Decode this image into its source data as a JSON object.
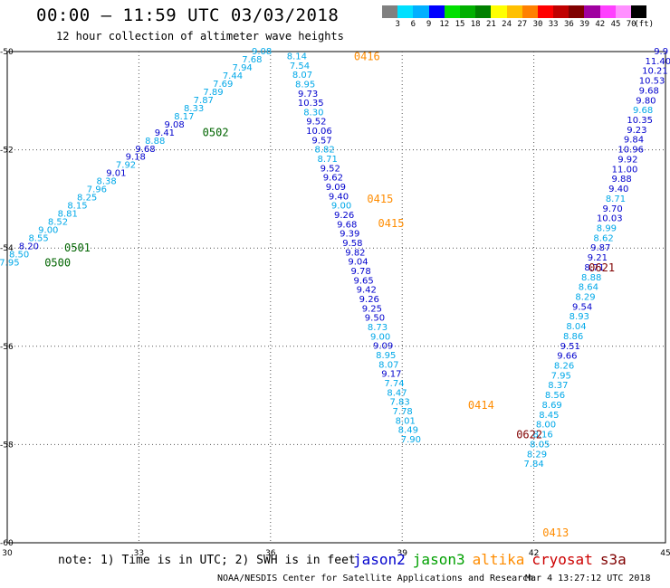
{
  "header": {
    "title": "00:00 — 11:59 UTC 03/03/2018",
    "subtitle": "12 hour collection of altimeter wave heights"
  },
  "color_scale": {
    "unit_label": "(ft)",
    "levels": [
      "3",
      "6",
      "9",
      "12",
      "15",
      "18",
      "21",
      "24",
      "27",
      "30",
      "33",
      "36",
      "39",
      "42",
      "45",
      "70"
    ],
    "colors": [
      "#808080",
      "#00e0ff",
      "#00b0ff",
      "#0000ff",
      "#00e000",
      "#00b000",
      "#008000",
      "#ffff00",
      "#ffc000",
      "#ff8000",
      "#ff0000",
      "#c00000",
      "#800000",
      "#a000a0",
      "#ff40ff",
      "#ff90ff",
      "#000000"
    ]
  },
  "map": {
    "lon_ticks": [
      "30",
      "33",
      "36",
      "39",
      "42",
      "45"
    ],
    "lat_ticks": [
      "-50",
      "-52",
      "-54",
      "-56",
      "-58",
      "-60"
    ],
    "pass_labels": [
      {
        "text": "0416",
        "lon": 37.9,
        "lat": -50.1,
        "color": "#ff8c00"
      },
      {
        "text": "0502",
        "lon": 34.45,
        "lat": -51.65,
        "color": "#006400"
      },
      {
        "text": "0501",
        "lon": 31.3,
        "lat": -54.0,
        "color": "#006400"
      },
      {
        "text": "0500",
        "lon": 30.85,
        "lat": -54.3,
        "color": "#006400"
      },
      {
        "text": "0415",
        "lon": 38.2,
        "lat": -53.0,
        "color": "#ff8c00"
      },
      {
        "text": "0415",
        "lon": 38.45,
        "lat": -53.5,
        "color": "#ff8c00"
      },
      {
        "text": "0414",
        "lon": 40.5,
        "lat": -57.2,
        "color": "#ff8c00"
      },
      {
        "text": "0622",
        "lon": 41.6,
        "lat": -57.8,
        "color": "#800000"
      },
      {
        "text": "0621",
        "lon": 43.25,
        "lat": -54.4,
        "color": "#800000"
      },
      {
        "text": "0413",
        "lon": 42.2,
        "lat": -59.8,
        "color": "#ff8c00"
      }
    ],
    "tracks": [
      {
        "name": "0500-0502",
        "color": "#00b0ff",
        "start": [
          30.05,
          -54.3
        ],
        "end": [
          35.8,
          -50.0
        ],
        "values": [
          "7.95",
          "8.50",
          "8.20",
          "8.55",
          "9.00",
          "8.52",
          "8.81",
          "8.15",
          "8.25",
          "7.96",
          "8.38",
          "9.01",
          "7.92",
          "9.18",
          "9.68",
          "8.88",
          "9.41",
          "9.08",
          "8.17",
          "8.33",
          "7.87",
          "7.89",
          "7.69",
          "7.44",
          "7.94",
          "7.68",
          "9.08"
        ],
        "colors": [
          "c",
          "c",
          "b",
          "c",
          "c",
          "c",
          "c",
          "c",
          "c",
          "c",
          "c",
          "b",
          "c",
          "b",
          "b",
          "c",
          "b",
          "b",
          "c",
          "c",
          "c",
          "c",
          "c",
          "c",
          "c",
          "c",
          "c"
        ]
      },
      {
        "name": "0416-0415",
        "color": "#0000ff",
        "start": [
          36.6,
          -50.1
        ],
        "end": [
          39.2,
          -57.9
        ],
        "values": [
          "8.14",
          "7.54",
          "8.07",
          "8.95",
          "9.73",
          "10.35",
          "8.30",
          "9.52",
          "10.06",
          "9.57",
          "8.82",
          "8.71",
          "9.52",
          "9.62",
          "9.09",
          "9.40",
          "9.00",
          "9.26",
          "9.68",
          "9.39",
          "9.58",
          "9.82",
          "9.04",
          "9.78",
          "9.65",
          "9.42",
          "9.26",
          "9.25",
          "9.50",
          "8.73",
          "9.00",
          "9.09",
          "8.95",
          "8.07",
          "9.17",
          "7.74",
          "8.47",
          "7.83",
          "7.78",
          "8.01",
          "8.49",
          "7.90"
        ],
        "colors": [
          "c",
          "c",
          "c",
          "c",
          "b",
          "b",
          "c",
          "b",
          "b",
          "b",
          "c",
          "c",
          "b",
          "b",
          "b",
          "b",
          "c",
          "b",
          "b",
          "b",
          "b",
          "b",
          "b",
          "b",
          "b",
          "b",
          "b",
          "b",
          "b",
          "c",
          "c",
          "b",
          "c",
          "c",
          "b",
          "c",
          "c",
          "c",
          "c",
          "c",
          "c",
          "c"
        ]
      },
      {
        "name": "0413-0414",
        "color": "#00b0ff",
        "start": [
          44.9,
          -50.0
        ],
        "end": [
          42.0,
          -58.4
        ],
        "values": [
          "9.9",
          "11.40",
          "10.21",
          "10.53",
          "9.68",
          "9.80",
          "9.68",
          "10.35",
          "9.23",
          "9.84",
          "10.96",
          "9.92",
          "11.00",
          "9.88",
          "9.40",
          "8.71",
          "9.70",
          "10.03",
          "8.99",
          "8.62",
          "9.87",
          "9.21",
          "8.71",
          "8.88",
          "8.64",
          "8.29",
          "9.54",
          "8.93",
          "8.04",
          "8.86",
          "9.51",
          "9.66",
          "8.26",
          "7.95",
          "8.37",
          "8.56",
          "8.69",
          "8.45",
          "8.00",
          "8.16",
          "8.05",
          "8.29",
          "7.84"
        ],
        "colors": [
          "b",
          "b",
          "b",
          "b",
          "b",
          "b",
          "c",
          "b",
          "b",
          "b",
          "b",
          "b",
          "b",
          "b",
          "b",
          "c",
          "b",
          "b",
          "c",
          "c",
          "b",
          "b",
          "b",
          "c",
          "c",
          "c",
          "b",
          "c",
          "c",
          "c",
          "b",
          "b",
          "c",
          "c",
          "c",
          "c",
          "c",
          "c",
          "c",
          "c",
          "c",
          "c",
          "c"
        ]
      }
    ]
  },
  "footer": {
    "note": "note: 1) Time is in UTC; 2) SWH is in feet",
    "legend": [
      {
        "name": "jason2",
        "color": "#0000cd"
      },
      {
        "name": "jason3",
        "color": "#00a000"
      },
      {
        "name": "altika",
        "color": "#ff8c00"
      },
      {
        "name": "cryosat",
        "color": "#cc0000"
      },
      {
        "name": "s3a",
        "color": "#800000"
      }
    ],
    "credit": "NOAA/NESDIS Center for Satellite Applications and Research",
    "timestamp": "Mar  4 13:27:12 UTC 2018"
  }
}
